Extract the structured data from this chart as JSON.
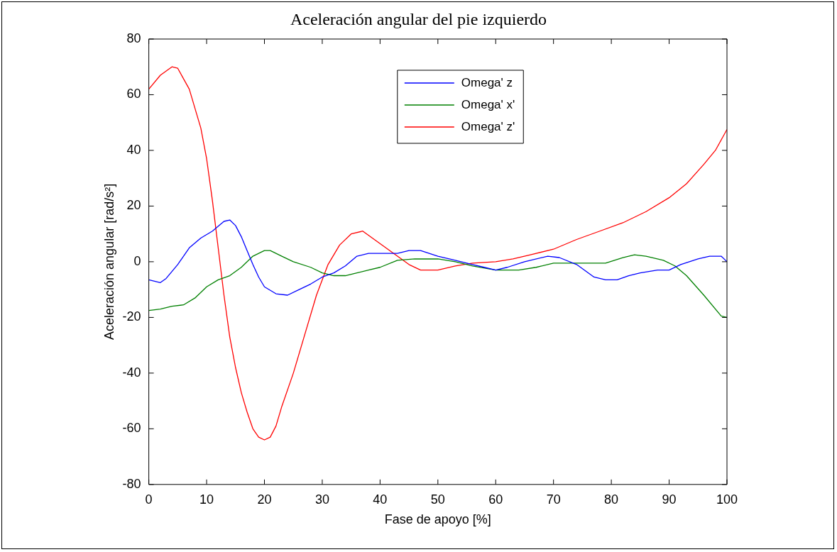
{
  "chart_data": {
    "type": "line",
    "title": "Aceleración angular del pie izquierdo",
    "xlabel": "Fase de apoyo [%]",
    "ylabel": "Aceleración angular [rad/s²]",
    "xlim": [
      0,
      100
    ],
    "xticks": [
      0,
      10,
      20,
      30,
      40,
      50,
      60,
      70,
      80,
      90,
      100
    ],
    "ylim": [
      -80,
      80
    ],
    "yticks": [
      -80,
      -60,
      -40,
      -20,
      0,
      20,
      40,
      60,
      80
    ],
    "grid": false,
    "legend": "top",
    "marker": "none",
    "line_style": "solid",
    "series": [
      {
        "name": "Omega' z",
        "color": "#0000ff",
        "x": [
          0,
          2,
          3,
          5,
          7,
          9,
          11,
          13,
          14,
          15,
          16,
          17,
          18,
          19,
          20,
          22,
          24,
          26,
          28,
          30,
          32,
          34,
          36,
          38,
          40,
          43,
          45,
          47,
          50,
          53,
          56,
          58,
          60,
          62,
          65,
          69,
          71,
          74,
          77,
          79,
          81,
          83,
          85,
          88,
          90,
          92,
          95,
          97,
          99,
          100
        ],
        "values": [
          -6.5,
          -7.5,
          -6,
          -1,
          5,
          8.5,
          11,
          14.5,
          15,
          13,
          9,
          4,
          -1,
          -5.5,
          -9,
          -11.5,
          -12,
          -10,
          -8,
          -5.5,
          -4,
          -1.5,
          2,
          3,
          3,
          3,
          4,
          4,
          2,
          0.5,
          -1,
          -2,
          -3,
          -2,
          0,
          2,
          1.5,
          -1,
          -5.5,
          -6.5,
          -6.5,
          -5,
          -4,
          -3,
          -3,
          -1,
          1,
          2,
          2,
          0
        ]
      },
      {
        "name": "Omega' x'",
        "color": "#008000",
        "x": [
          0,
          2,
          4,
          6,
          8,
          10,
          12,
          14,
          16,
          18,
          20,
          21,
          23,
          25,
          28,
          30,
          32,
          34,
          36,
          38,
          40,
          43,
          46,
          50,
          53,
          56,
          60,
          64,
          67,
          70,
          76,
          79,
          82,
          84,
          86,
          89,
          91,
          93,
          96,
          99,
          100
        ],
        "values": [
          -17.5,
          -17,
          -16,
          -15.5,
          -13,
          -9,
          -6.5,
          -5,
          -2,
          2,
          4,
          4,
          2,
          0,
          -2,
          -4,
          -5,
          -5,
          -4,
          -3,
          -2,
          0.5,
          1,
          1,
          0,
          -1.5,
          -3,
          -3,
          -2,
          -0.5,
          -0.5,
          -0.5,
          1.5,
          2.5,
          2,
          0.5,
          -1.5,
          -5,
          -12,
          -19.5,
          -20
        ]
      },
      {
        "name": "Omega' z'",
        "color": "#ff0000",
        "x": [
          0,
          2,
          4,
          5,
          7,
          9,
          10,
          11,
          12,
          13,
          14,
          15,
          16,
          17,
          18,
          19,
          20,
          21,
          22,
          23,
          25,
          27,
          29,
          31,
          33,
          35,
          37,
          39,
          41,
          43,
          45,
          47,
          50,
          53,
          56,
          60,
          63,
          66,
          70,
          74,
          78,
          82,
          86,
          90,
          93,
          96,
          98,
          100
        ],
        "values": [
          62,
          67,
          70,
          69.5,
          62,
          48,
          37,
          22,
          5,
          -12,
          -27,
          -38,
          -47,
          -54,
          -60,
          -63,
          -64,
          -63,
          -59,
          -52,
          -40,
          -26,
          -12,
          -1,
          6,
          10,
          11,
          8,
          5,
          2,
          -1,
          -3,
          -3,
          -1.5,
          -0.5,
          0,
          1,
          2.5,
          4.5,
          8,
          11,
          14,
          18,
          23,
          28,
          35,
          40,
          47.5
        ]
      }
    ]
  }
}
